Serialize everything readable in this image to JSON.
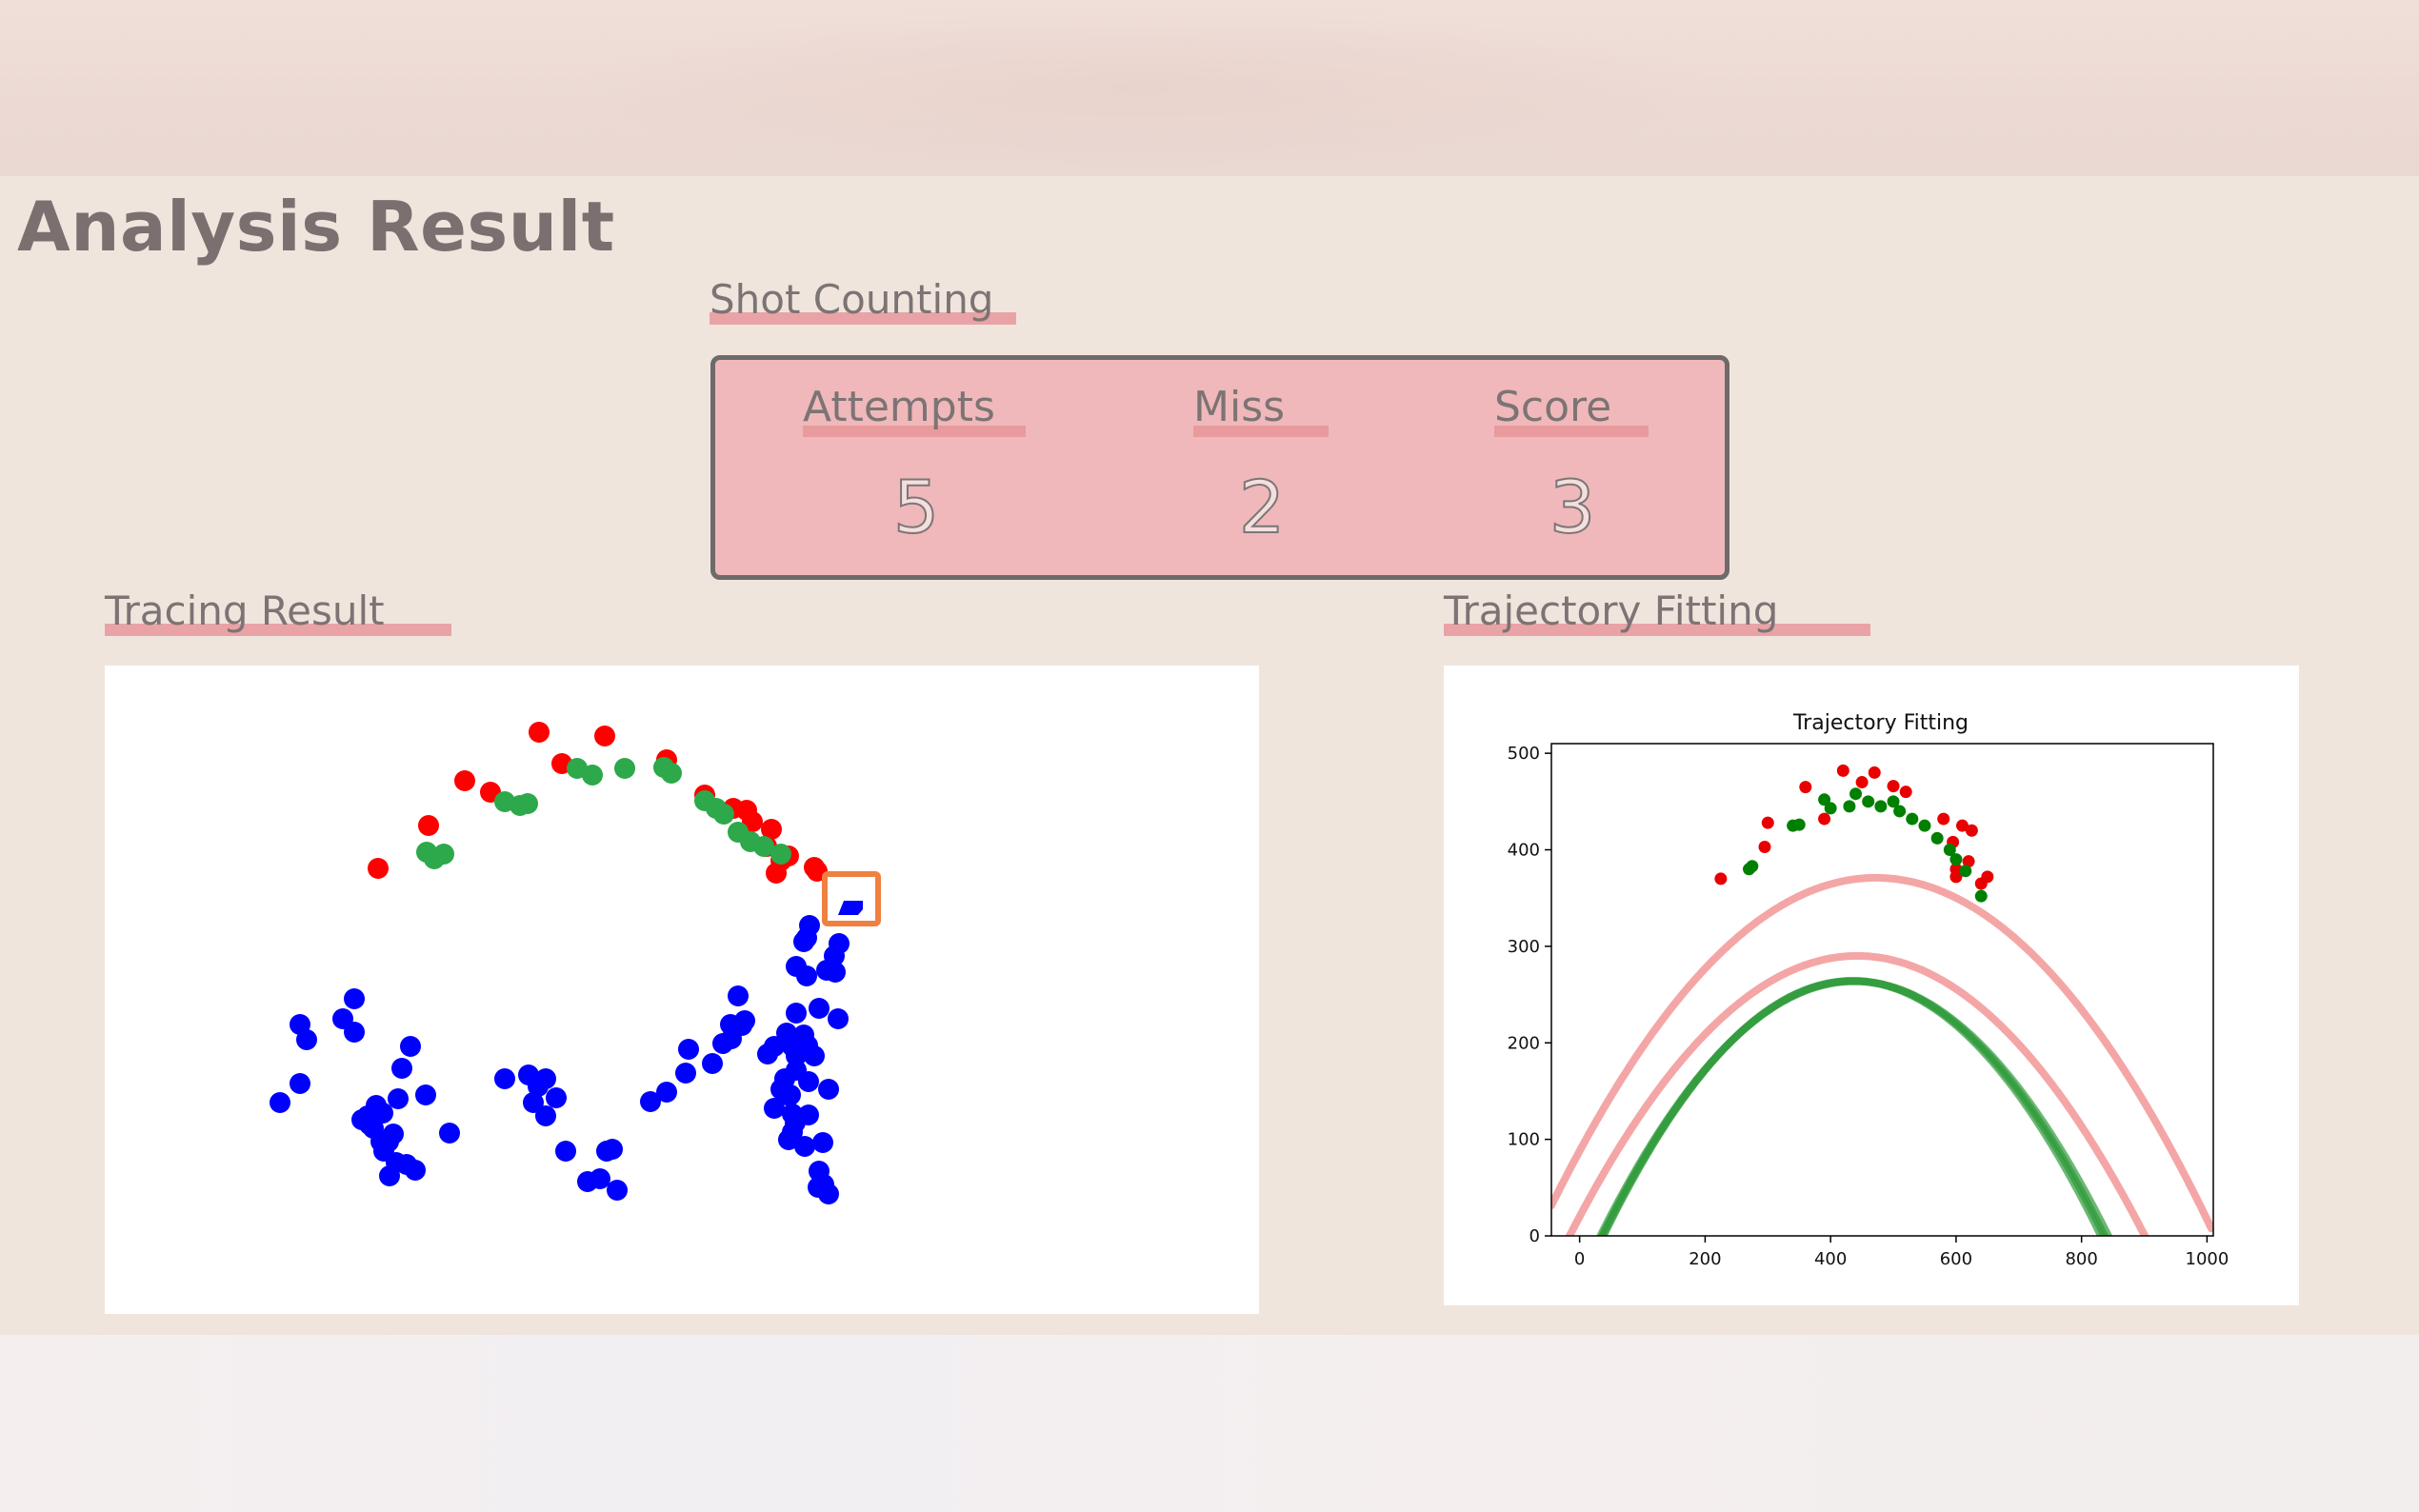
{
  "page": {
    "title": "Analysis Result"
  },
  "shot_counting": {
    "title": "Shot Counting",
    "stats": [
      {
        "label": "Attempts",
        "value": "5"
      },
      {
        "label": "Miss",
        "value": "2"
      },
      {
        "label": "Score",
        "value": "3"
      }
    ]
  },
  "tracing": {
    "title": "Tracing Result",
    "colors": {
      "made": "#2da84a",
      "missed": "#ff0000",
      "ball": "#0000ff",
      "box": "#f08040"
    }
  },
  "trajectory": {
    "title": "Trajectory Fitting"
  },
  "chart_data": {
    "type": "scatter",
    "title": "Trajectory Fitting",
    "xlabel": "",
    "ylabel": "",
    "xlim": [
      -45,
      1010
    ],
    "ylim": [
      0,
      510
    ],
    "xticks": [
      0,
      200,
      400,
      600,
      800,
      1000
    ],
    "yticks": [
      0,
      100,
      200,
      300,
      400,
      500
    ],
    "grid": false,
    "series": [
      {
        "kind": "points",
        "color": "#e80000",
        "points": [
          [
            225,
            370
          ],
          [
            295,
            403
          ],
          [
            300,
            428
          ],
          [
            360,
            465
          ],
          [
            390,
            432
          ],
          [
            420,
            482
          ],
          [
            450,
            470
          ],
          [
            470,
            480
          ],
          [
            500,
            466
          ],
          [
            520,
            460
          ],
          [
            580,
            432
          ],
          [
            595,
            408
          ],
          [
            600,
            380
          ],
          [
            600,
            372
          ],
          [
            610,
            425
          ],
          [
            620,
            388
          ],
          [
            625,
            420
          ],
          [
            640,
            365
          ],
          [
            650,
            372
          ]
        ]
      },
      {
        "kind": "points",
        "color": "#008000",
        "points": [
          [
            270,
            380
          ],
          [
            275,
            383
          ],
          [
            340,
            425
          ],
          [
            350,
            426
          ],
          [
            390,
            452
          ],
          [
            400,
            443
          ],
          [
            430,
            445
          ],
          [
            440,
            458
          ],
          [
            460,
            450
          ],
          [
            480,
            445
          ],
          [
            500,
            450
          ],
          [
            510,
            440
          ],
          [
            530,
            432
          ],
          [
            550,
            425
          ],
          [
            570,
            412
          ],
          [
            590,
            400
          ],
          [
            600,
            390
          ],
          [
            615,
            378
          ],
          [
            640,
            352
          ]
        ]
      },
      {
        "kind": "fit",
        "color": "#f08080",
        "coef": [
          -0.00127,
          1.199,
          88
        ]
      },
      {
        "kind": "fit",
        "color": "#f08080",
        "coef": [
          -0.00138,
          1.221,
          20
        ]
      },
      {
        "kind": "fit",
        "color": "#2f9a3a",
        "coef": [
          -0.00165,
          1.44,
          -50
        ]
      },
      {
        "kind": "fit",
        "color": "#2f9a3a",
        "coef": [
          -0.00161,
          1.41,
          -45
        ]
      },
      {
        "kind": "fit",
        "color": "#2f9a3a",
        "coef": [
          -0.00168,
          1.46,
          -53
        ]
      }
    ]
  }
}
